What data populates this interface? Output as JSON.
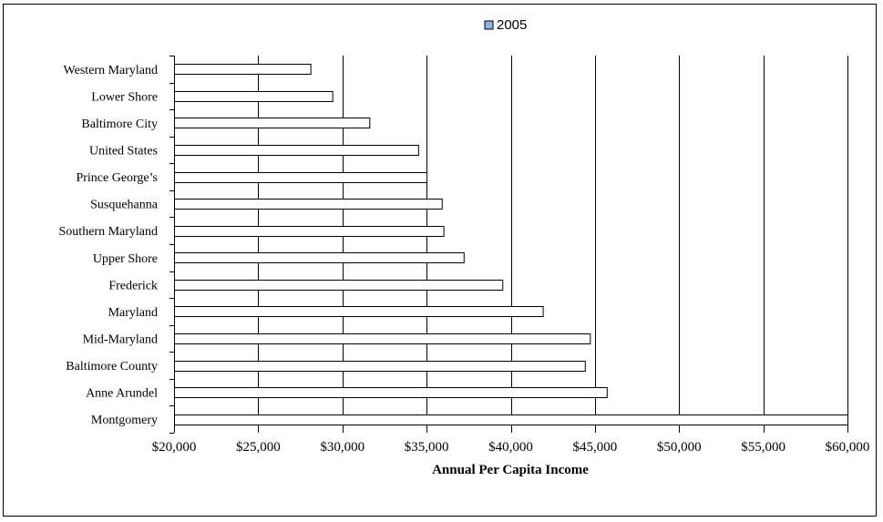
{
  "chart_data": {
    "type": "bar",
    "orientation": "horizontal",
    "categories": [
      "Western Maryland",
      "Lower Shore",
      "Baltimore City",
      "United States",
      "Prince George’s",
      "Susquehanna",
      "Southern Maryland",
      "Upper Shore",
      "Frederick",
      "Maryland",
      "Mid-Maryland",
      "Baltimore County",
      "Anne Arundel",
      "Montgomery"
    ],
    "series": [
      {
        "name": "2005",
        "values": [
          28100,
          29400,
          31600,
          34500,
          35000,
          35900,
          36000,
          37200,
          39500,
          41900,
          44700,
          44400,
          45700,
          60000
        ]
      }
    ],
    "title": "",
    "xlabel": "Annual Per Capita Income",
    "ylabel": "",
    "xlim": [
      20000,
      60000
    ],
    "x_ticks": [
      20000,
      25000,
      30000,
      35000,
      40000,
      45000,
      50000,
      55000,
      60000
    ],
    "x_tick_labels": [
      "$20,000",
      "$25,000",
      "$30,000",
      "$35,000",
      "$40,000",
      "$45,000",
      "$50,000",
      "$55,000",
      "$60,000"
    ],
    "grid": "vertical",
    "legend_position": "top-center",
    "colors": {
      "bar_fill": "#ffffff",
      "bar_stroke": "#000000",
      "legend_swatch": "#8eb4e3",
      "gridline": "#000000"
    }
  }
}
